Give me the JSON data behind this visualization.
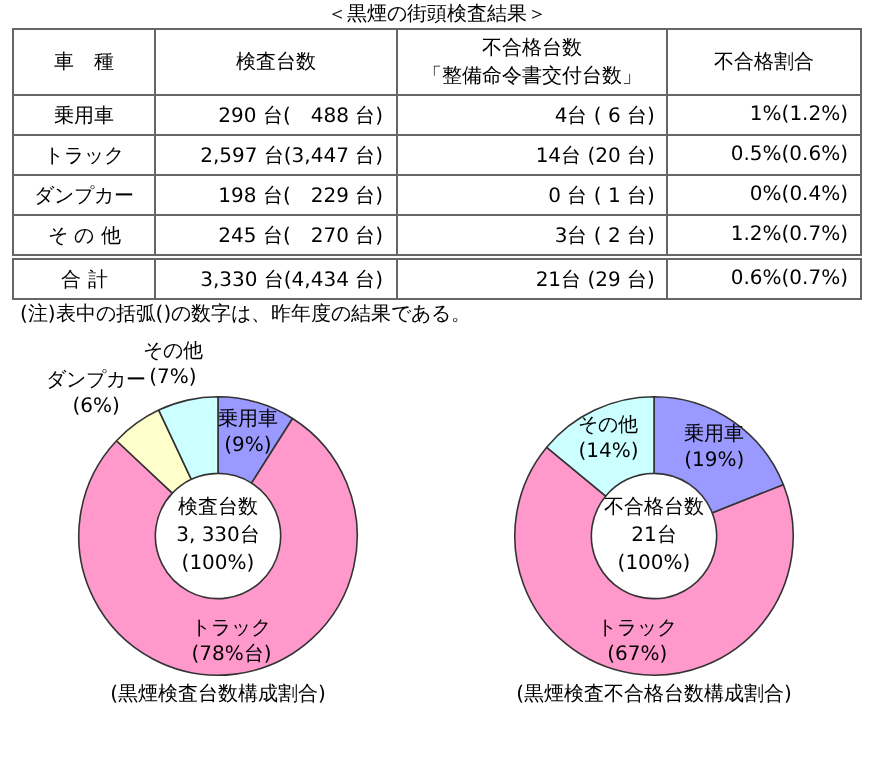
{
  "chart_data": [
    {
      "type": "other",
      "title": "＜黒煙の街頭検査結果＞",
      "categories": [
        "車　種",
        "検査台数",
        "不合格台数「整備命令書交付台数」",
        "不合格割合"
      ],
      "y_categories": [
        "乗用車",
        "トラック",
        "ダンプカー",
        "そ の 他",
        "合 計"
      ],
      "cell_labels": [
        [
          "290 台(　488 台)",
          "4台 ( 6 台)",
          "1%(1.2%)"
        ],
        [
          "2,597 台(3,447 台)",
          "14台 (20 台)",
          "0.5%(0.6%)"
        ],
        [
          "198 台(　229 台)",
          "0 台 ( 1 台)",
          "0%(0.4%)"
        ],
        [
          "245 台(　270 台)",
          "3台 ( 2 台)",
          "1.2%(0.7%)"
        ],
        [
          "3,330 台(4,434 台)",
          "21台 (29 台)",
          "0.6%(0.7%)"
        ]
      ],
      "annotations": [
        "(注)表中の括弧()の数字は、昨年度の結果である。"
      ]
    },
    {
      "type": "donut",
      "title": "(黒煙検査台数構成割合)",
      "categories": [
        "乗用車",
        "トラック",
        "ダンプカー",
        "その他"
      ],
      "values": [
        9,
        78,
        6,
        7
      ],
      "colors": [
        "#9999ff",
        "#ff99cc",
        "#ffffcc",
        "#ccffff"
      ],
      "value_labels": [
        "(9%)",
        "(78%台)",
        "(6%)",
        "(7%)"
      ],
      "annotations": [
        "検査台数",
        "3, 330台",
        "(100%)"
      ]
    },
    {
      "type": "donut",
      "title": "(黒煙検査不合格台数構成割合)",
      "categories": [
        "乗用車",
        "トラック",
        "その他"
      ],
      "values": [
        19,
        67,
        14
      ],
      "colors": [
        "#9999ff",
        "#ff99cc",
        "#ccffff"
      ],
      "value_labels": [
        "(19%)",
        "(67%)",
        "(14%)"
      ],
      "annotations": [
        "不合格台数",
        "21台",
        "(100%)"
      ]
    }
  ]
}
